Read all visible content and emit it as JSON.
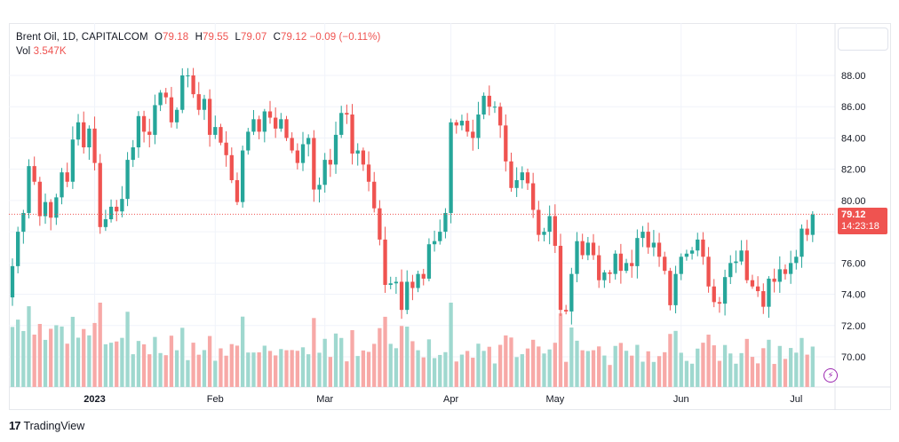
{
  "legend": {
    "symbol": "Brent Oil, 1D, CAPITALCOM",
    "o_label": "O",
    "o_val": "79.18",
    "h_label": "H",
    "h_val": "79.55",
    "l_label": "L",
    "l_val": "79.07",
    "c_label": "C",
    "c_val": "79.12",
    "change": "−0.09 (−0.11%)",
    "vol_label": "Vol",
    "vol_val": "3.547K"
  },
  "price_tag": {
    "price": "79.12",
    "countdown": "14:23:18"
  },
  "branding": {
    "logo_mark": "17",
    "name": "TradingView"
  },
  "icons": {
    "bolt": "lightning-icon"
  },
  "colors": {
    "up": "#26a69a",
    "down": "#ef5350",
    "up_vol": "#9fd8cf",
    "down_vol": "#f7a9a7",
    "grid": "#f0f3fa"
  },
  "chart_data": {
    "type": "candlestick",
    "y_range": [
      68.0,
      90.0
    ],
    "y_ticks": [
      70,
      72,
      74,
      76,
      78,
      80,
      82,
      84,
      86,
      88
    ],
    "y_tick_labels": [
      "70.00",
      "72.00",
      "74.00",
      "76.00",
      "78.00",
      "80.00",
      "82.00",
      "84.00",
      "86.00",
      "88.00"
    ],
    "x_labels": [
      {
        "label": "2023",
        "index": 15
      },
      {
        "label": "Feb",
        "index": 37
      },
      {
        "label": "Mar",
        "index": 57
      },
      {
        "label": "Apr",
        "index": 80
      },
      {
        "label": "May",
        "index": 99
      },
      {
        "label": "Jun",
        "index": 122
      },
      {
        "label": "Jul",
        "index": 143
      }
    ],
    "last_price": 79.12,
    "closes": [
      75.8,
      78.0,
      79.2,
      82.2,
      81.2,
      79.0,
      79.9,
      78.9,
      80.2,
      81.8,
      81.2,
      83.9,
      85.0,
      83.4,
      84.6,
      82.4,
      78.3,
      78.8,
      79.6,
      79.3,
      80.1,
      82.6,
      83.4,
      85.4,
      84.4,
      84.2,
      86.1,
      86.9,
      86.6,
      85.0,
      85.8,
      88.0,
      88.0,
      86.8,
      85.8,
      86.5,
      84.2,
      84.7,
      83.7,
      82.9,
      81.3,
      79.9,
      83.2,
      84.4,
      85.2,
      84.4,
      85.7,
      85.3,
      84.6,
      85.2,
      84.0,
      83.2,
      82.4,
      83.6,
      84.0,
      80.7,
      81.0,
      82.6,
      82.3,
      84.2,
      85.6,
      85.5,
      83.0,
      83.2,
      82.3,
      81.2,
      79.5,
      77.5,
      74.6,
      74.7,
      74.8,
      73.0,
      74.8,
      74.4,
      75.3,
      75.0,
      77.2,
      77.4,
      78.0,
      79.2,
      85.0,
      84.8,
      85.1,
      84.4,
      84.0,
      85.5,
      86.7,
      86.0,
      86.0,
      84.8,
      82.5,
      80.8,
      81.3,
      81.8,
      81.1,
      79.4,
      77.8,
      78.0,
      79.0,
      77.1,
      73.0,
      72.9,
      75.3,
      77.4,
      76.5,
      77.3,
      76.5,
      74.9,
      75.4,
      75.3,
      76.6,
      75.5,
      76.0,
      75.8,
      77.6,
      78.0,
      77.0,
      77.3,
      76.4,
      75.5,
      73.3,
      75.3,
      76.4,
      76.6,
      76.8,
      77.5,
      76.4,
      74.5,
      73.5,
      73.4,
      75.1,
      76.0,
      76.1,
      76.8,
      74.9,
      74.5,
      74.2,
      73.2,
      75.0,
      74.8,
      75.6,
      75.3,
      76.0,
      76.4,
      78.2,
      77.8,
      79.1
    ]
  }
}
